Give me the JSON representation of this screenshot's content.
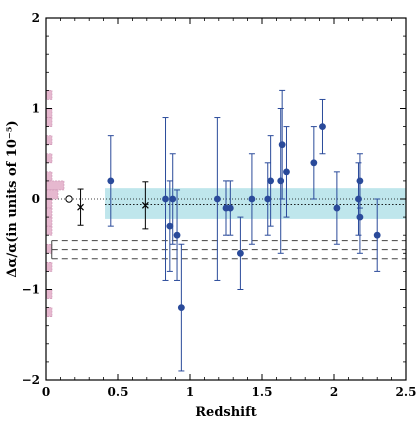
{
  "chart_data": {
    "type": "scatter",
    "title": "",
    "xlabel": "Redshift",
    "ylabel": "Δα/α(in units of 10⁻⁵)",
    "xlim": [
      0,
      2.5
    ],
    "ylim": [
      -2,
      2
    ],
    "x_ticks": [
      {
        "value": 0,
        "label": "0"
      },
      {
        "value": 0.5,
        "label": "0.5"
      },
      {
        "value": 1,
        "label": "1"
      },
      {
        "value": 1.5,
        "label": "1.5"
      },
      {
        "value": 2,
        "label": "2"
      },
      {
        "value": 2.5,
        "label": "2.5"
      }
    ],
    "y_ticks": [
      {
        "value": -2,
        "label": "−2"
      },
      {
        "value": -1,
        "label": "−1"
      },
      {
        "value": 0,
        "label": "0"
      },
      {
        "value": 1,
        "label": "1"
      },
      {
        "value": 2,
        "label": "2"
      }
    ],
    "grid": false,
    "colors": {
      "points": "#2a4a9a",
      "band": "#bfe6ec",
      "histogram": "#e6b8cf",
      "crosses": "#000000"
    },
    "mean_band": {
      "x": [
        0.41,
        2.5
      ],
      "y": [
        -0.22,
        0.12
      ],
      "mean": -0.06
    },
    "dashed_lines": [
      {
        "x": [
          0.0,
          2.5
        ],
        "y": -0.46
      },
      {
        "x": [
          0.0,
          2.5
        ],
        "y": -0.56
      },
      {
        "x": [
          0.0,
          2.5
        ],
        "y": -0.66
      }
    ],
    "dashed_brackets": [
      {
        "x": 0.04,
        "y": [
          -0.46,
          -0.56
        ]
      },
      {
        "x": 0.04,
        "y": [
          -0.56,
          -0.66
        ]
      }
    ],
    "series": [
      {
        "marker": "filled-circle",
        "points": [
          {
            "x": 0.45,
            "y": 0.2,
            "err": 0.5
          },
          {
            "x": 0.83,
            "y": 0.0,
            "err": 0.9
          },
          {
            "x": 0.86,
            "y": -0.3,
            "err": 0.5
          },
          {
            "x": 0.88,
            "y": 0.0,
            "err": 0.5
          },
          {
            "x": 0.91,
            "y": -0.4,
            "err": 0.5
          },
          {
            "x": 0.94,
            "y": -1.2,
            "err": 0.7
          },
          {
            "x": 1.19,
            "y": 0.0,
            "err": 0.9
          },
          {
            "x": 1.25,
            "y": -0.1,
            "err": 0.3
          },
          {
            "x": 1.28,
            "y": -0.1,
            "err": 0.3
          },
          {
            "x": 1.35,
            "y": -0.6,
            "err": 0.4
          },
          {
            "x": 1.43,
            "y": 0.0,
            "err": 0.5
          },
          {
            "x": 1.54,
            "y": 0.0,
            "err": 0.4
          },
          {
            "x": 1.56,
            "y": 0.2,
            "err": 0.5
          },
          {
            "x": 1.63,
            "y": 0.2,
            "err": 0.8
          },
          {
            "x": 1.64,
            "y": 0.6,
            "err": 0.6
          },
          {
            "x": 1.67,
            "y": 0.3,
            "err": 0.5
          },
          {
            "x": 1.86,
            "y": 0.4,
            "err": 0.4
          },
          {
            "x": 1.92,
            "y": 0.8,
            "err": 0.3
          },
          {
            "x": 2.02,
            "y": -0.1,
            "err": 0.4
          },
          {
            "x": 2.17,
            "y": 0.0,
            "err": 0.4
          },
          {
            "x": 2.18,
            "y": 0.2,
            "err": 0.3
          },
          {
            "x": 2.18,
            "y": -0.2,
            "err": 0.4
          },
          {
            "x": 2.3,
            "y": -0.4,
            "err": 0.4
          }
        ]
      },
      {
        "marker": "cross",
        "points": [
          {
            "x": 0.24,
            "y": -0.09,
            "err": 0.2
          },
          {
            "x": 0.69,
            "y": -0.07,
            "err": 0.26
          }
        ]
      },
      {
        "marker": "open-circle",
        "points": [
          {
            "x": 0.16,
            "y": 0.0,
            "err": 0
          }
        ]
      }
    ],
    "histogram": {
      "orientation": "horizontal",
      "bins": [
        {
          "y": [
            1.1,
            1.2
          ],
          "count": 1
        },
        {
          "y": [
            0.9,
            1.0
          ],
          "count": 1
        },
        {
          "y": [
            0.8,
            0.9
          ],
          "count": 1
        },
        {
          "y": [
            0.6,
            0.7
          ],
          "count": 1
        },
        {
          "y": [
            0.4,
            0.5
          ],
          "count": 1
        },
        {
          "y": [
            0.2,
            0.3
          ],
          "count": 1
        },
        {
          "y": [
            0.1,
            0.2
          ],
          "count": 3
        },
        {
          "y": [
            0.0,
            0.1
          ],
          "count": 2
        },
        {
          "y": [
            -0.1,
            0.0
          ],
          "count": 1
        },
        {
          "y": [
            -0.2,
            -0.1
          ],
          "count": 1
        },
        {
          "y": [
            -0.3,
            -0.2
          ],
          "count": 1
        },
        {
          "y": [
            -0.4,
            -0.3
          ],
          "count": 1
        },
        {
          "y": [
            -0.6,
            -0.5
          ],
          "count": 1
        },
        {
          "y": [
            -0.8,
            -0.7
          ],
          "count": 1
        },
        {
          "y": [
            -1.1,
            -1.0
          ],
          "count": 1
        },
        {
          "y": [
            -1.3,
            -1.2
          ],
          "count": 1
        }
      ]
    }
  }
}
